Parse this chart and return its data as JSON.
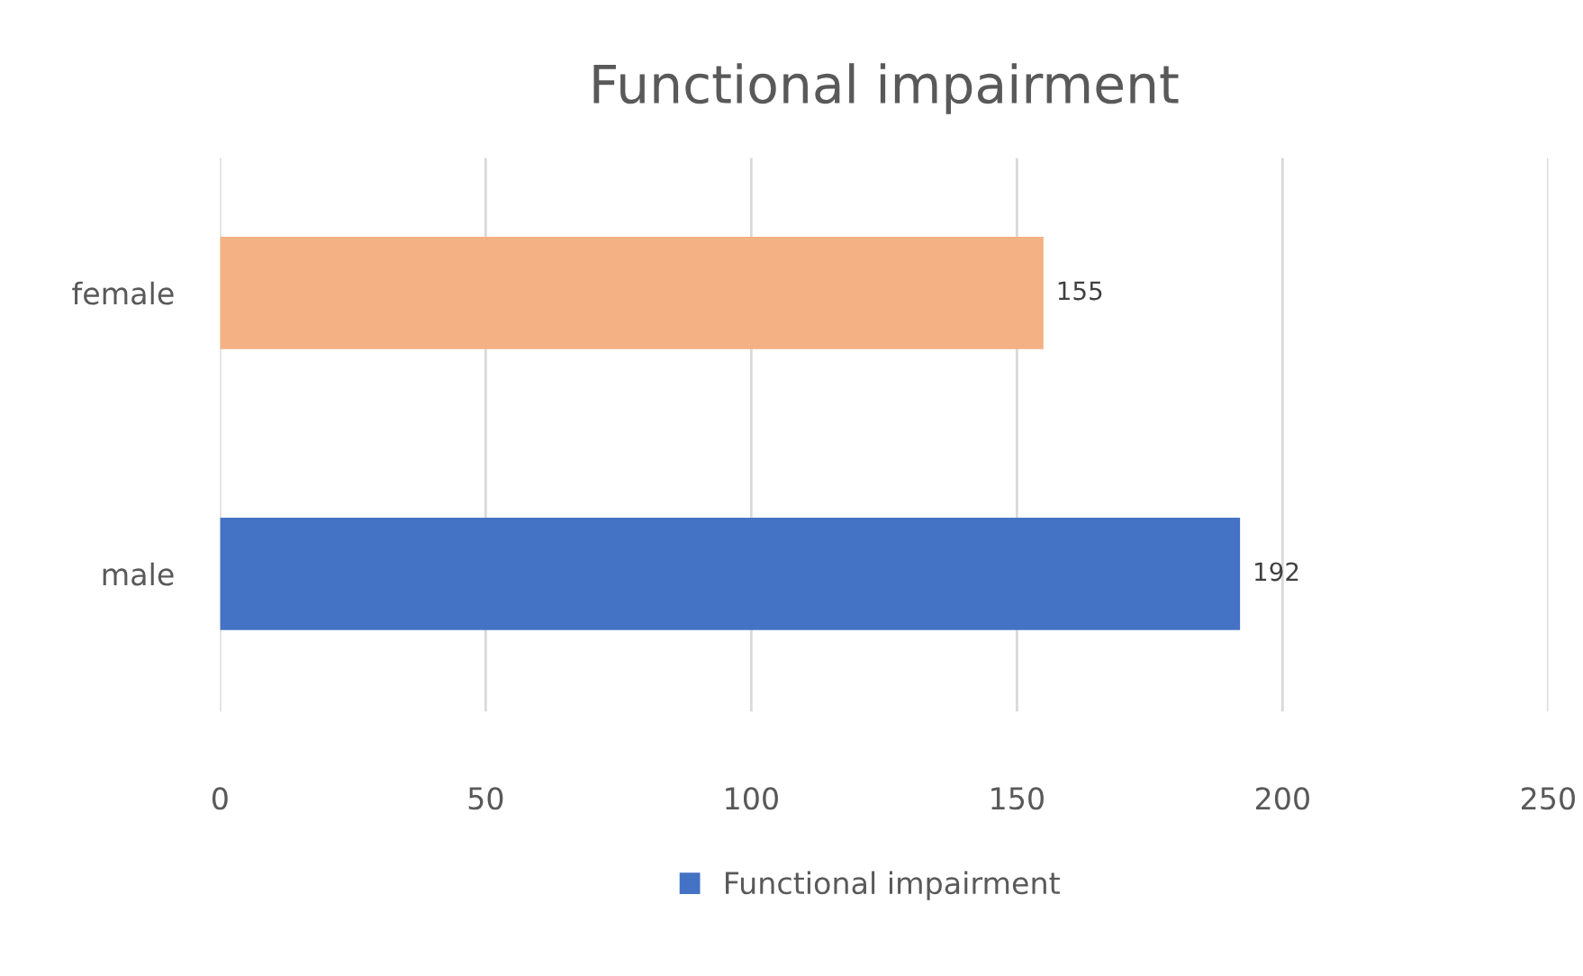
{
  "chart_data": {
    "type": "bar",
    "title": "Functional impairment",
    "orientation": "horizontal",
    "categories": [
      "female",
      "male"
    ],
    "series": [
      {
        "name": "Functional impairment",
        "color": "#4472c4",
        "colors": [
          "#f4b183",
          "#4472c4"
        ],
        "values": [
          155,
          192
        ]
      }
    ],
    "xlim": [
      0,
      250
    ],
    "xticks": [
      0,
      50,
      100,
      150,
      200,
      250
    ],
    "grid": "x",
    "data_labels": true,
    "legend": "bottom"
  }
}
